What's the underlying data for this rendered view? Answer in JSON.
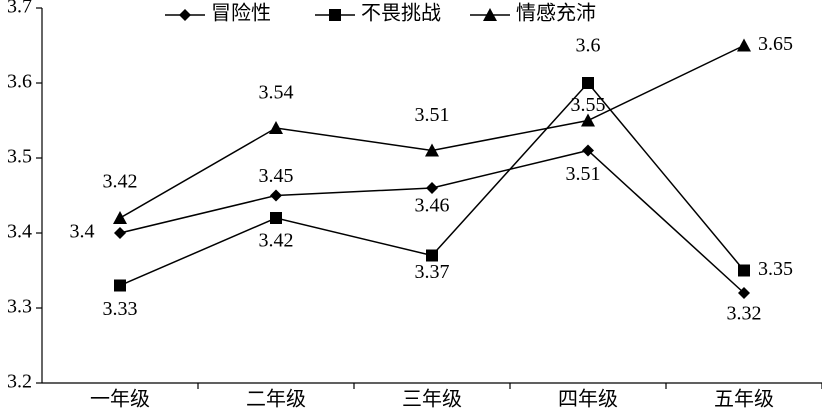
{
  "chart_data": {
    "type": "line",
    "categories": [
      "一年级",
      "二年级",
      "三年级",
      "四年级",
      "五年级"
    ],
    "series": [
      {
        "name": "冒险性",
        "color": "#000000",
        "marker": "diamond",
        "values": [
          3.4,
          3.45,
          3.46,
          3.51,
          3.32
        ]
      },
      {
        "name": "不畏挑战",
        "color": "#000000",
        "marker": "square",
        "values": [
          3.33,
          3.42,
          3.37,
          3.6,
          3.35
        ]
      },
      {
        "name": "情感充沛",
        "color": "#000000",
        "marker": "triangle",
        "values": [
          3.42,
          3.54,
          3.51,
          3.55,
          3.65
        ]
      }
    ],
    "ylim": [
      3.2,
      3.7
    ],
    "yticks": [
      3.2,
      3.3,
      3.4,
      3.5,
      3.6,
      3.7
    ],
    "grid": false,
    "legend": "top"
  }
}
